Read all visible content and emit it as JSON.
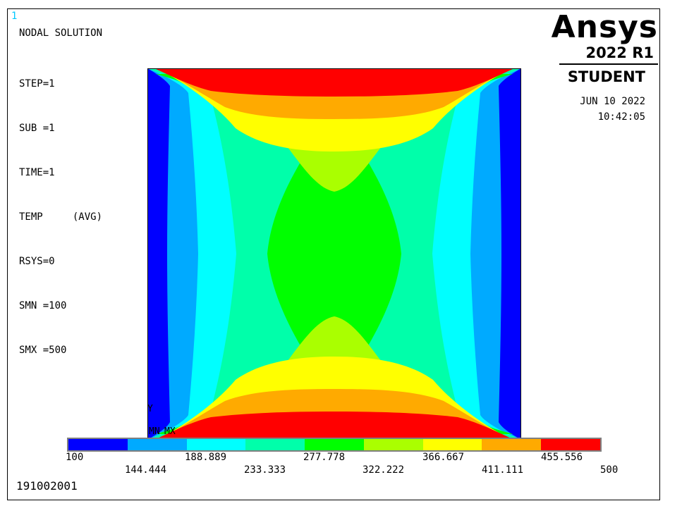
{
  "window_number": "1",
  "solution": {
    "title": "NODAL SOLUTION",
    "lines": [
      "STEP=1",
      "SUB =1",
      "TIME=1",
      "TEMP     (AVG)",
      "RSYS=0",
      "SMN =100",
      "SMX =500"
    ]
  },
  "logo": {
    "brand": "Ansys",
    "version": "2022 R1",
    "edition": "STUDENT"
  },
  "date": "JUN 10 2022",
  "time": "10:42:05",
  "axis": {
    "y_label": "Y",
    "mn_label": "MN",
    "mx_label": "MX"
  },
  "legend": {
    "colors": [
      "#0000ff",
      "#00aaff",
      "#00ffff",
      "#00ffaa",
      "#00ff00",
      "#aaff00",
      "#ffff00",
      "#ffaa00",
      "#ff0000"
    ],
    "top_labels": [
      "100",
      "188.889",
      "277.778",
      "366.667",
      "455.556"
    ],
    "bottom_labels": [
      "144.444",
      "233.333",
      "322.222",
      "411.111",
      "500"
    ]
  },
  "job_id": "191002001"
}
